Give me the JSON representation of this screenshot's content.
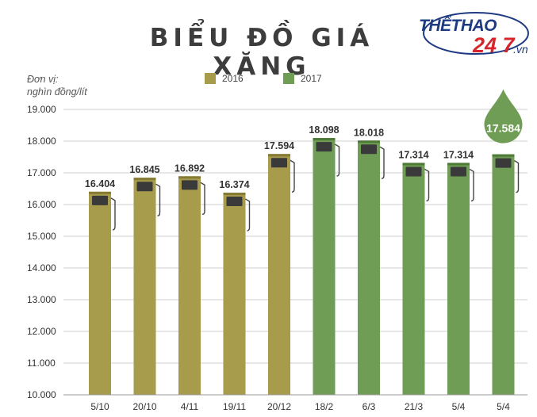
{
  "header": {
    "title": "BIỂU ĐỒ GIÁ XĂNG",
    "unit_line1": "Đơn vị:",
    "unit_line2": "nghìn đồng/lít"
  },
  "logo": {
    "part1": "THỂTHAO",
    "part2": "24 7",
    "part3": ".vn"
  },
  "legend": [
    {
      "label": "2016",
      "color": "#a79b4c"
    },
    {
      "label": "2017",
      "color": "#6f9d55"
    }
  ],
  "chart_data": {
    "type": "bar",
    "title": "BIỂU ĐỒ GIÁ XĂNG",
    "ylabel": "Đơn vị: nghìn đồng/lít",
    "xlabel": "",
    "ylim": [
      10000,
      19000
    ],
    "yticks": [
      "10.000",
      "11.000",
      "12.000",
      "13.000",
      "14.000",
      "15.000",
      "16.000",
      "17.000",
      "18.000",
      "19.000"
    ],
    "categories": [
      "5/10",
      "20/10",
      "4/11",
      "19/11",
      "20/12",
      "18/2",
      "6/3",
      "21/3",
      "5/4",
      "5/4"
    ],
    "values": [
      16404,
      16845,
      16892,
      16374,
      17594,
      18098,
      18018,
      17314,
      17314,
      17584
    ],
    "value_labels": [
      "16.404",
      "16.845",
      "16.892",
      "16.374",
      "17.594",
      "18.098",
      "18.018",
      "17.314",
      "17.314",
      "17.584"
    ],
    "series_year": [
      "2016",
      "2016",
      "2016",
      "2016",
      "2016",
      "2017",
      "2017",
      "2017",
      "2017",
      "2017"
    ],
    "highlight_label": "17.584",
    "grid": true,
    "legend_position": "top"
  }
}
